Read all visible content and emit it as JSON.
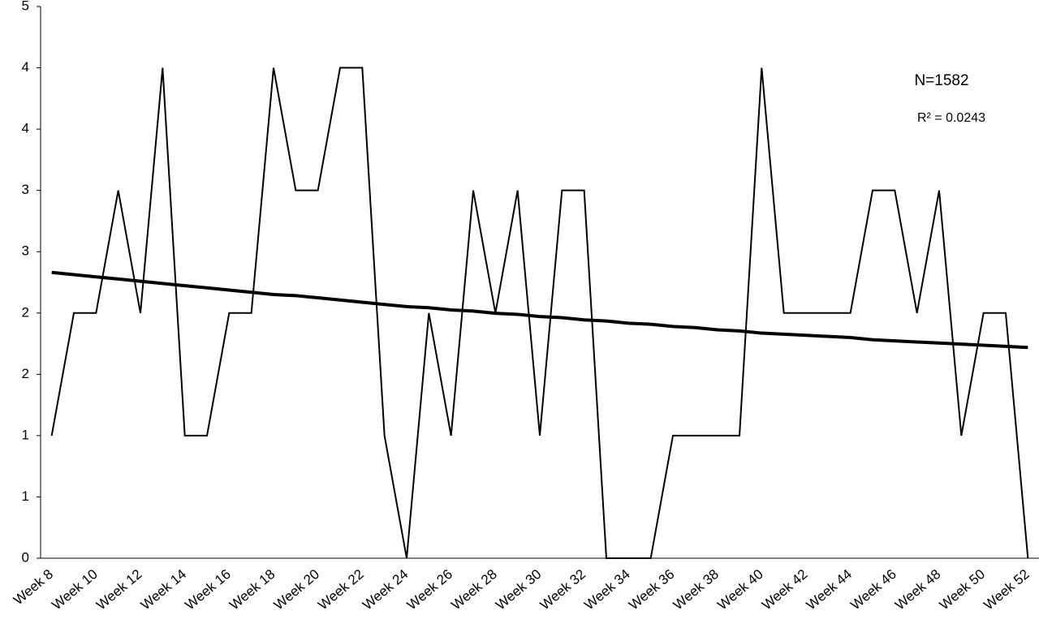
{
  "chart_data": {
    "type": "line",
    "categories": [
      "Week 8",
      null,
      "Week 10",
      null,
      "Week 12",
      null,
      "Week 14",
      null,
      "Week 16",
      null,
      "Week 18",
      null,
      "Week 20",
      null,
      "Week 22",
      null,
      "Week 24",
      null,
      "Week 26",
      null,
      "Week 28",
      null,
      "Week 30",
      null,
      "Week 32",
      null,
      "Week 34",
      null,
      "Week 36",
      null,
      "Week 38",
      null,
      "Week 40",
      null,
      "Week 42",
      null,
      "Week 44",
      null,
      "Week 46",
      null,
      "Week 48",
      null,
      "Week 50",
      null,
      "Week 52"
    ],
    "series": [
      {
        "color": "#000000",
        "values": [
          1.1111,
          2.2222,
          2.2222,
          3.3333,
          2.2222,
          4.4444,
          1.1111,
          1.1111,
          2.2222,
          2.2222,
          4.4444,
          3.3333,
          3.3333,
          4.4444,
          4.4444,
          1.1111,
          0,
          2.2222,
          1.1111,
          3.3333,
          2.2222,
          3.3333,
          1.1111,
          3.3333,
          3.3333,
          0,
          0,
          0,
          1.1111,
          1.1111,
          1.1111,
          1.1111,
          4.4444,
          2.2222,
          2.2222,
          2.2222,
          2.2222,
          3.3333,
          3.3333,
          2.2222,
          3.3333,
          1.1111,
          2.2222,
          2.2222,
          0
        ]
      },
      {
        "color": "#000000",
        "values": [
          2.59,
          2.57,
          2.55,
          2.53,
          2.51,
          2.49,
          2.47,
          2.45,
          2.43,
          2.41,
          2.39,
          2.38,
          2.36,
          2.34,
          2.32,
          2.3,
          2.28,
          2.27,
          2.25,
          2.24,
          2.22,
          2.21,
          2.19,
          2.18,
          2.16,
          2.15,
          2.13,
          2.12,
          2.1,
          2.09,
          2.07,
          2.06,
          2.04,
          2.03,
          2.02,
          2.01,
          2.0,
          1.98,
          1.97,
          1.96,
          1.95,
          1.94,
          1.93,
          1.92,
          1.91
        ]
      }
    ],
    "annotations": [
      "N=1582",
      "R² = 0.0243"
    ],
    "ylim": [
      0,
      5
    ],
    "yticks": [
      0,
      {
        "value": 0.5556,
        "label": "1"
      },
      {
        "value": 1.1111,
        "label": "1"
      },
      {
        "value": 1.6667,
        "label": "2"
      },
      {
        "value": 2.2222,
        "label": "2"
      },
      {
        "value": 2.7778,
        "label": "3"
      },
      {
        "value": 3.3333,
        "label": "3"
      },
      {
        "value": 3.8889,
        "label": "4"
      },
      {
        "value": 4.4444,
        "label": "4"
      },
      5
    ]
  }
}
